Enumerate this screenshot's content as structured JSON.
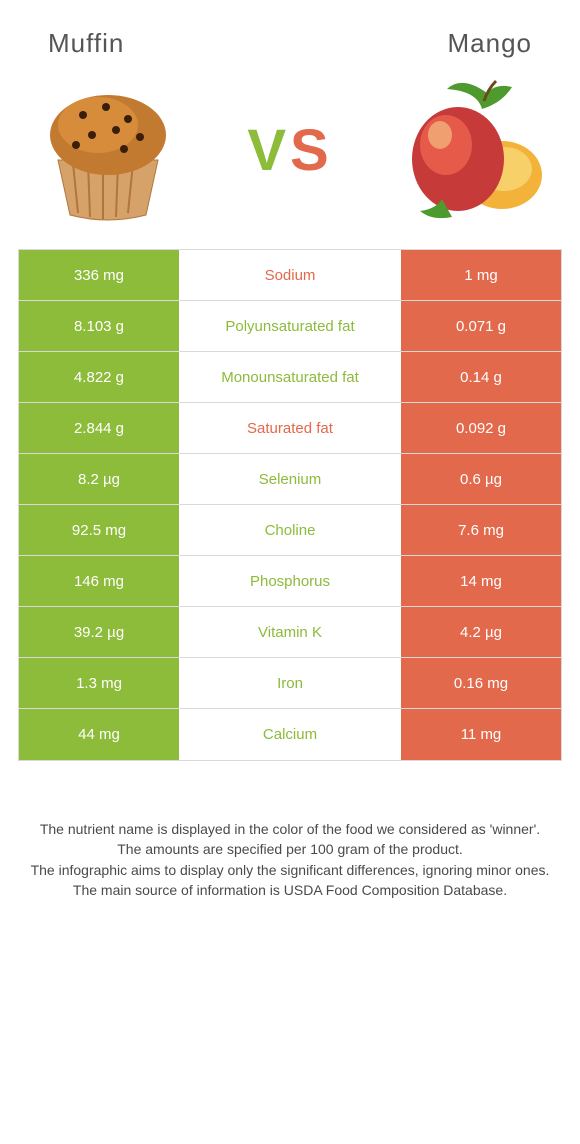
{
  "type": "infographic",
  "header": {
    "left_title": "Muffin",
    "right_title": "Mango",
    "vs_text": "VS"
  },
  "colors": {
    "left": "#8dbb3a",
    "right": "#e2694b",
    "vs_v": "#8dbb3a",
    "vs_s": "#e2694b",
    "border": "#d9d9d9",
    "text": "#4a4a4a"
  },
  "rows": [
    {
      "nutrient": "Sodium",
      "left": "336 mg",
      "right": "1 mg",
      "winner": "right"
    },
    {
      "nutrient": "Polyunsaturated fat",
      "left": "8.103 g",
      "right": "0.071 g",
      "winner": "left"
    },
    {
      "nutrient": "Monounsaturated fat",
      "left": "4.822 g",
      "right": "0.14 g",
      "winner": "left"
    },
    {
      "nutrient": "Saturated fat",
      "left": "2.844 g",
      "right": "0.092 g",
      "winner": "right"
    },
    {
      "nutrient": "Selenium",
      "left": "8.2 µg",
      "right": "0.6 µg",
      "winner": "left"
    },
    {
      "nutrient": "Choline",
      "left": "92.5 mg",
      "right": "7.6 mg",
      "winner": "left"
    },
    {
      "nutrient": "Phosphorus",
      "left": "146 mg",
      "right": "14 mg",
      "winner": "left"
    },
    {
      "nutrient": "Vitamin K",
      "left": "39.2 µg",
      "right": "4.2 µg",
      "winner": "left"
    },
    {
      "nutrient": "Iron",
      "left": "1.3 mg",
      "right": "0.16 mg",
      "winner": "left"
    },
    {
      "nutrient": "Calcium",
      "left": "44 mg",
      "right": "11 mg",
      "winner": "left"
    }
  ],
  "footer": [
    "The nutrient name is displayed in the color of the food we considered as 'winner'.",
    "The amounts are specified per 100 gram of the product.",
    "The infographic aims to display only the significant differences, ignoring minor ones.",
    "The main source of information is USDA Food Composition Database."
  ]
}
